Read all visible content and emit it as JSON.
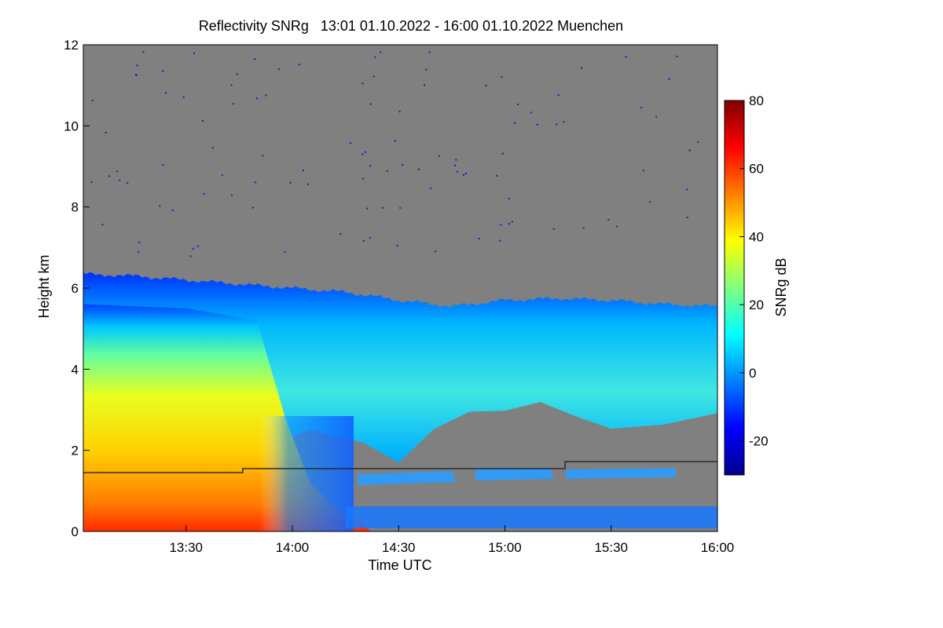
{
  "chart_data": {
    "type": "heatmap",
    "title": "Reflectivity SNRg   13:01 01.10.2022 - 16:00 01.10.2022 Muenchen",
    "xlabel": "Time UTC",
    "ylabel": "Height km",
    "xlim": [
      "13:01",
      "16:00"
    ],
    "ylim": [
      0,
      12
    ],
    "x_ticks": [
      "13:30",
      "14:00",
      "14:30",
      "15:00",
      "15:30",
      "16:00"
    ],
    "y_ticks": [
      "0",
      "2",
      "4",
      "6",
      "8",
      "10",
      "12"
    ],
    "colorbar": {
      "label": "SNRg dB",
      "range": [
        -30,
        80
      ],
      "ticks": [
        "-20",
        "0",
        "20",
        "40",
        "60",
        "80"
      ],
      "colors": [
        "#00008f",
        "#0000ff",
        "#0080ff",
        "#00ffff",
        "#80ff80",
        "#ffff00",
        "#ff8000",
        "#ff0000",
        "#800000"
      ]
    },
    "no_signal_color": "#808080",
    "cloud_top_km": [
      {
        "time": "13:01",
        "height": 6.35
      },
      {
        "time": "13:15",
        "height": 6.3
      },
      {
        "time": "13:30",
        "height": 6.2
      },
      {
        "time": "14:00",
        "height": 6.0
      },
      {
        "time": "14:15",
        "height": 5.9
      },
      {
        "time": "14:30",
        "height": 5.7
      },
      {
        "time": "14:45",
        "height": 5.55
      },
      {
        "time": "15:00",
        "height": 5.7
      },
      {
        "time": "15:15",
        "height": 5.75
      },
      {
        "time": "15:30",
        "height": 5.7
      },
      {
        "time": "15:45",
        "height": 5.6
      },
      {
        "time": "16:00",
        "height": 5.55
      }
    ],
    "cloud_base_km": [
      {
        "time": "13:01",
        "height": 0.0
      },
      {
        "time": "13:50",
        "height": 0.0
      },
      {
        "time": "13:55",
        "height": 2.2
      },
      {
        "time": "14:05",
        "height": 2.5
      },
      {
        "time": "14:20",
        "height": 2.3
      },
      {
        "time": "14:30",
        "height": 1.6
      },
      {
        "time": "14:40",
        "height": 2.6
      },
      {
        "time": "14:50",
        "height": 2.9
      },
      {
        "time": "15:00",
        "height": 3.0
      },
      {
        "time": "15:10",
        "height": 3.2
      },
      {
        "time": "15:20",
        "height": 2.8
      },
      {
        "time": "15:30",
        "height": 2.6
      },
      {
        "time": "15:45",
        "height": 2.7
      },
      {
        "time": "16:00",
        "height": 2.8
      }
    ],
    "boundary_line_km": [
      {
        "time": "13:01",
        "height": 1.45
      },
      {
        "time": "13:46",
        "height": 1.45
      },
      {
        "time": "13:46",
        "height": 1.55
      },
      {
        "time": "15:17",
        "height": 1.55
      },
      {
        "time": "15:17",
        "height": 1.72
      },
      {
        "time": "16:00",
        "height": 1.72
      }
    ]
  }
}
